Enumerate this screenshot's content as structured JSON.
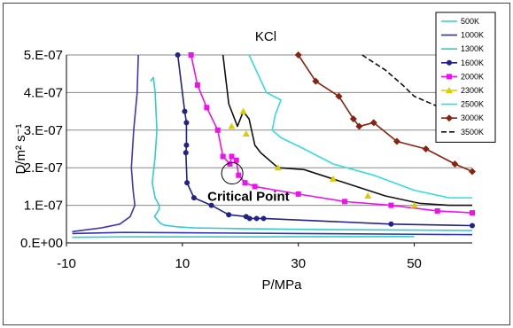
{
  "chart_data": {
    "type": "line",
    "title": "KCl",
    "xlabel": "P/MPa",
    "ylabel": "D/m² s⁻¹",
    "xlim": [
      -10,
      60
    ],
    "ylim": [
      0,
      5e-07
    ],
    "xticks": [
      "-10",
      "10",
      "30",
      "50"
    ],
    "xtick_values": [
      -10,
      10,
      30,
      50
    ],
    "yticks": [
      "0.E+00",
      "1.E-07",
      "2.E-07",
      "3.E-07",
      "4.E-07",
      "5.E-07"
    ],
    "ytick_values": [
      0,
      1e-07,
      2e-07,
      3e-07,
      4e-07,
      5e-07
    ],
    "grid": "horizontal",
    "legend_position": "right",
    "annotation": {
      "text": "Critical Point",
      "x": 18.6,
      "y": 1.85e-07
    },
    "series": [
      {
        "name": "500K",
        "color": "#33cccc",
        "marker": "none",
        "dash": "",
        "x": [
          -9,
          0,
          20,
          50
        ],
        "y": [
          1.5e-08,
          1.6e-08,
          1.6e-08,
          1.7e-08
        ]
      },
      {
        "name": "1000K",
        "color": "#3333aa",
        "marker": "none",
        "dash": "",
        "x": [
          -9,
          -3,
          0,
          10,
          30,
          50,
          60
        ],
        "y": [
          2.5e-08,
          2.7e-08,
          2.8e-08,
          2.7e-08,
          2.5e-08,
          2.3e-08,
          2.2e-08
        ]
      },
      {
        "name": "1000K",
        "color": "#4433bb",
        "marker": "none",
        "dash": "",
        "x": [
          2.4,
          2.2,
          1.6,
          1.2,
          1.5,
          1.8,
          1.0,
          -0.8,
          -4,
          -9
        ],
        "y": [
          5e-07,
          4e-07,
          3e-07,
          2e-07,
          1.4e-07,
          1e-07,
          7e-08,
          5e-08,
          4e-08,
          3e-08
        ]
      },
      {
        "name": "1300K",
        "color": "#33cccc",
        "marker": "none",
        "dash": "",
        "x": [
          4.5,
          5.0,
          5.3,
          5.6,
          5.3,
          4.8,
          5.3,
          6.0,
          6.0,
          5.2,
          6.2,
          6.9,
          9,
          12,
          20,
          30,
          40,
          50,
          60
        ],
        "y": [
          4.3e-07,
          4.4e-07,
          4e-07,
          3e-07,
          2.3e-07,
          1.6e-07,
          1.2e-07,
          1e-07,
          9e-08,
          7e-08,
          5.2e-08,
          4.7e-08,
          4.3e-08,
          4e-08,
          3.8e-08,
          3.6e-08,
          3.5e-08,
          3.4e-08,
          3.3e-08
        ]
      },
      {
        "name": "1600K",
        "color": "#222288",
        "marker": "circle",
        "dash": "",
        "x": [
          9.2,
          10.4,
          10.7,
          10.7,
          10.6,
          10.8,
          12.0,
          15.0,
          18.0,
          21.0,
          21.6,
          22.8,
          24.0,
          46.0,
          60.0
        ],
        "y": [
          5e-07,
          3.5e-07,
          3.2e-07,
          2.6e-07,
          2.4e-07,
          1.6e-07,
          1.2e-07,
          1e-07,
          7.5e-08,
          7e-08,
          6.5e-08,
          6.5e-08,
          6.5e-08,
          5e-08,
          4.6e-08
        ]
      },
      {
        "name": "2000K",
        "color": "#ee11ee",
        "marker": "square",
        "dash": "",
        "x": [
          11.5,
          12.6,
          14.2,
          16.1,
          17.0,
          18.2,
          18.5,
          19.3,
          19.7,
          20.8,
          22.5,
          30.0,
          38.0,
          46.0,
          54.0,
          60.0
        ],
        "y": [
          5e-07,
          4.2e-07,
          3.6e-07,
          3e-07,
          2.3e-07,
          2.1e-07,
          2.3e-07,
          2.2e-07,
          1.8e-07,
          1.6e-07,
          1.5e-07,
          1.3e-07,
          1.1e-07,
          1e-07,
          8.5e-08,
          8e-08
        ]
      },
      {
        "name": "2300K",
        "color": "#ddcc00",
        "marker": "triangle",
        "dash": "",
        "x": [],
        "y": []
      },
      {
        "name": "2300K_line",
        "color": "#111111",
        "marker": "none",
        "dash": "",
        "x": [
          17.0,
          18.0,
          19.5,
          20.5,
          21.5,
          22.5,
          23.5,
          26.5,
          31.0,
          38.0,
          45.0,
          51.0,
          56.0,
          60.0
        ],
        "y": [
          5e-07,
          3.7e-07,
          3.1e-07,
          3.5e-07,
          3.3e-07,
          2.6e-07,
          2.4e-07,
          2e-07,
          1.95e-07,
          1.6e-07,
          1.25e-07,
          1.05e-07,
          1e-07,
          1e-07
        ]
      },
      {
        "name": "2300K_pts",
        "color": "#ddcc00",
        "marker": "triangle",
        "dash": "none",
        "x": [
          18.5,
          20.5,
          21.0,
          26.5,
          36.0,
          42.0,
          50.0
        ],
        "y": [
          3.1e-07,
          3.5e-07,
          2.9e-07,
          2e-07,
          1.7e-07,
          1.25e-07,
          1e-07
        ]
      },
      {
        "name": "2500K",
        "color": "#33dddd",
        "marker": "none",
        "dash": "",
        "x": [
          21.5,
          24.5,
          27.0,
          26.0,
          25.5,
          27.0,
          31.0,
          36.0,
          43.0,
          50.0,
          56.0,
          60.0
        ],
        "y": [
          5e-07,
          4e-07,
          3.8e-07,
          3.4e-07,
          3e-07,
          2.8e-07,
          2.5e-07,
          2.1e-07,
          1.8e-07,
          1.4e-07,
          1.2e-07,
          1.2e-07
        ]
      },
      {
        "name": "3000K",
        "color": "#882211",
        "marker": "diamond",
        "dash": "",
        "x": [
          30.0,
          33.0,
          37.0,
          39.5,
          40.5,
          43.0,
          47.0,
          52.0,
          57.0,
          60.0
        ],
        "y": [
          5e-07,
          4.3e-07,
          3.9e-07,
          3.3e-07,
          3.1e-07,
          3.2e-07,
          2.7e-07,
          2.5e-07,
          2.1e-07,
          1.9e-07
        ]
      },
      {
        "name": "3500K",
        "color": "#111111",
        "marker": "none",
        "dash": "6,3",
        "x": [
          41.0,
          45.0,
          48.0,
          50.0,
          53.0,
          56.0,
          60.0
        ],
        "y": [
          5e-07,
          4.6e-07,
          4.2e-07,
          3.9e-07,
          3.7e-07,
          3.5e-07,
          3.3e-07
        ]
      }
    ],
    "legend": [
      {
        "name": "500K",
        "color": "#33cccc",
        "marker": "none",
        "dash": ""
      },
      {
        "name": "1000K",
        "color": "#3333aa",
        "marker": "none",
        "dash": ""
      },
      {
        "name": "1300K",
        "color": "#33cccc",
        "marker": "none",
        "dash": ""
      },
      {
        "name": "1600K",
        "color": "#222288",
        "marker": "circle",
        "dash": ""
      },
      {
        "name": "2000K",
        "color": "#ee11ee",
        "marker": "square",
        "dash": ""
      },
      {
        "name": "2300K",
        "color": "#ddcc00",
        "marker": "triangle",
        "dash": ""
      },
      {
        "name": "2500K",
        "color": "#33dddd",
        "marker": "none",
        "dash": ""
      },
      {
        "name": "3000K",
        "color": "#882211",
        "marker": "diamond",
        "dash": ""
      },
      {
        "name": "3500K",
        "color": "#111111",
        "marker": "none",
        "dash": "6,3"
      }
    ]
  }
}
